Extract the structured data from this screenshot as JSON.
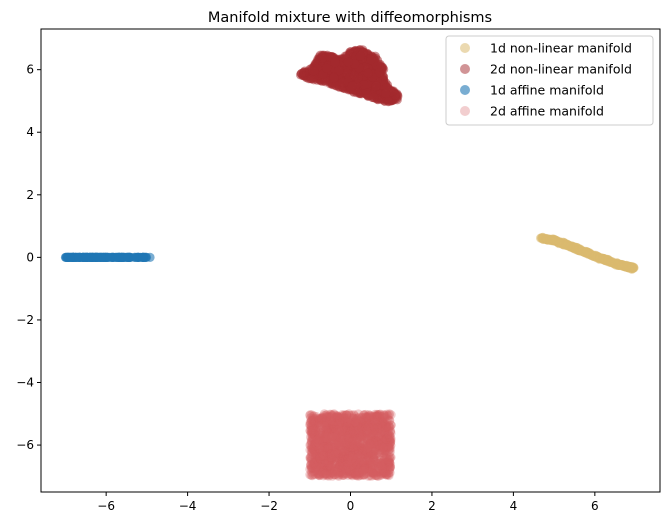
{
  "chart_data": {
    "type": "scatter",
    "title": "Manifold mixture with diffeomorphisms",
    "xlabel": "",
    "ylabel": "",
    "xlim": [
      -7.6,
      7.6
    ],
    "ylim": [
      -7.5,
      7.3
    ],
    "xticks": [
      -6,
      -4,
      -2,
      0,
      2,
      4,
      6
    ],
    "yticks": [
      -6,
      -4,
      -2,
      0,
      2,
      4,
      6
    ],
    "grid": false,
    "legend_position": "top-right",
    "series": [
      {
        "name": "1d non-linear manifold",
        "color": "#dbb970",
        "alpha": 0.55,
        "shape": "curve",
        "points": [
          [
            4.7,
            0.6
          ],
          [
            5.0,
            0.55
          ],
          [
            5.3,
            0.4
          ],
          [
            5.6,
            0.25
          ],
          [
            5.9,
            0.1
          ],
          [
            6.2,
            -0.05
          ],
          [
            6.5,
            -0.2
          ],
          [
            6.8,
            -0.3
          ],
          [
            6.95,
            -0.35
          ]
        ]
      },
      {
        "name": "2d non-linear manifold",
        "color": "#a32a2e",
        "alpha": 0.5,
        "shape": "blob",
        "outline": [
          [
            -1.3,
            5.85
          ],
          [
            -0.9,
            6.1
          ],
          [
            -0.75,
            6.5
          ],
          [
            -0.5,
            6.45
          ],
          [
            -0.2,
            6.35
          ],
          [
            0.0,
            6.6
          ],
          [
            0.3,
            6.65
          ],
          [
            0.6,
            6.45
          ],
          [
            0.8,
            6.15
          ],
          [
            0.85,
            5.65
          ],
          [
            1.0,
            5.35
          ],
          [
            1.2,
            5.25
          ],
          [
            1.15,
            5.0
          ],
          [
            0.9,
            4.95
          ],
          [
            0.6,
            5.05
          ],
          [
            0.3,
            5.2
          ],
          [
            0.0,
            5.3
          ],
          [
            -0.3,
            5.45
          ],
          [
            -0.6,
            5.6
          ],
          [
            -1.0,
            5.7
          ]
        ]
      },
      {
        "name": "1d affine manifold",
        "color": "#1f77b4",
        "alpha": 0.6,
        "shape": "line",
        "x_range": [
          -7.0,
          -4.9
        ],
        "y": 0.0
      },
      {
        "name": "2d affine manifold",
        "color": "#d45d60",
        "alpha": 0.3,
        "shape": "square",
        "x_range": [
          -1.0,
          1.0
        ],
        "y_range": [
          -7.0,
          -5.0
        ]
      }
    ]
  }
}
